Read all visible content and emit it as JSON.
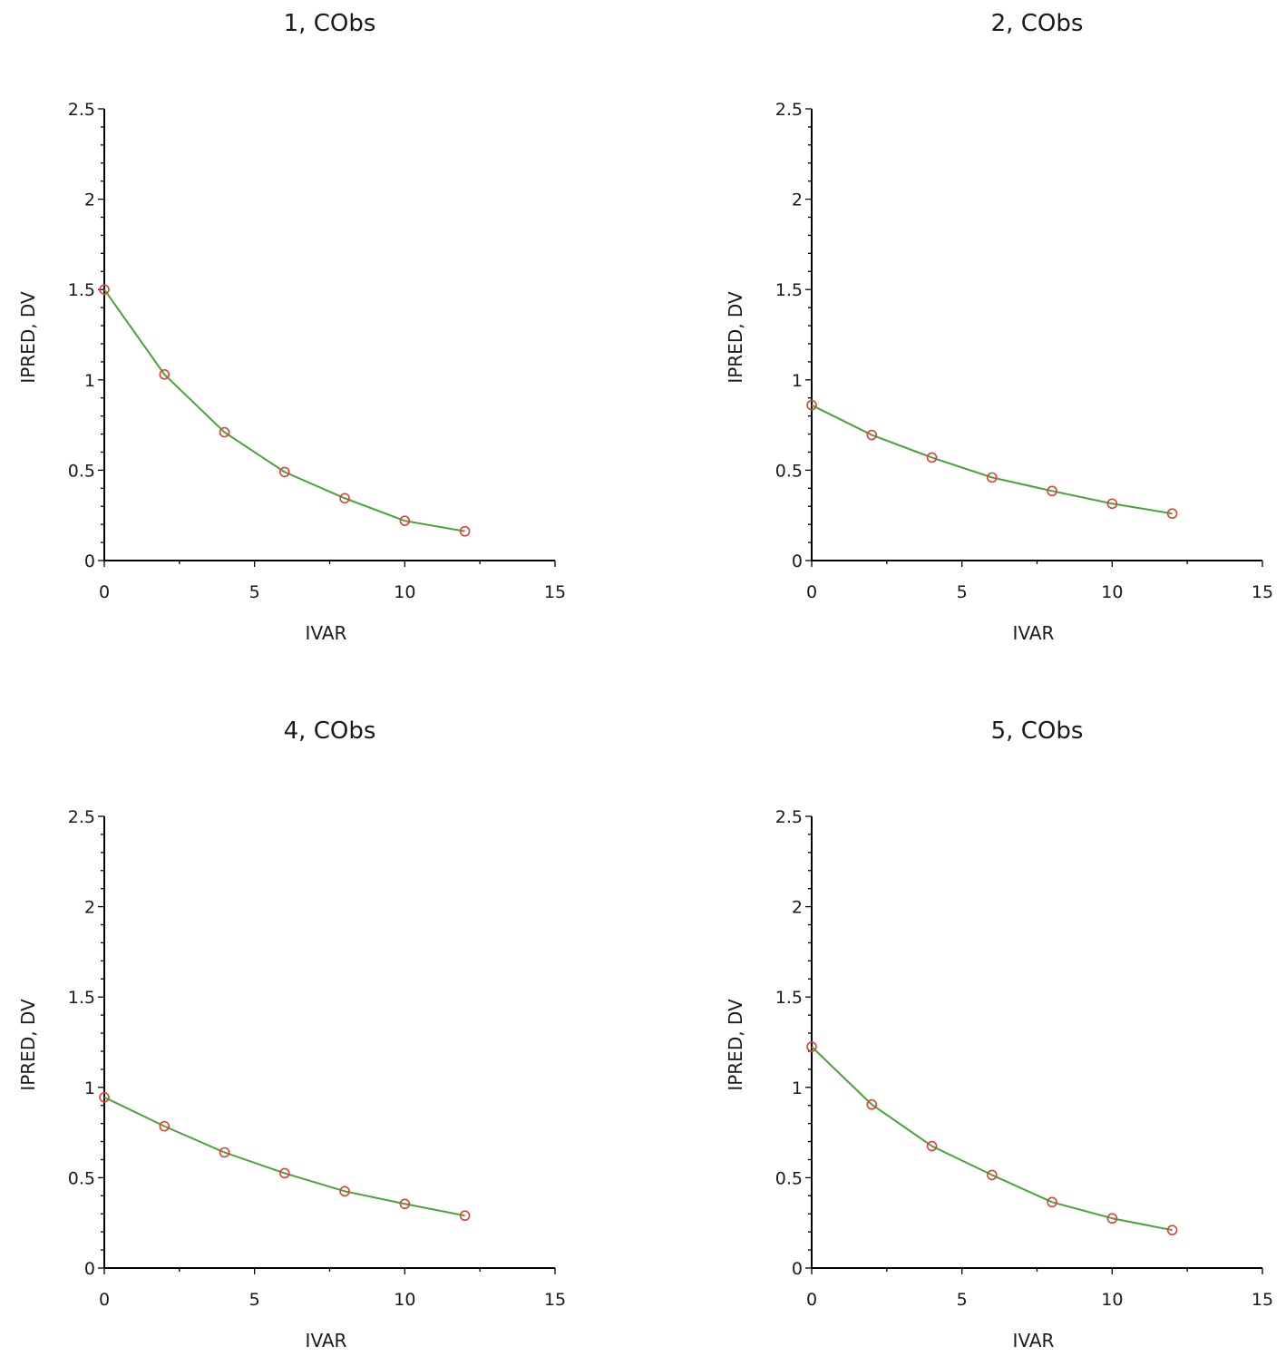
{
  "chart_data": [
    {
      "type": "line",
      "title": "1, CObs",
      "xlabel": "IVAR",
      "ylabel": "IPRED, DV",
      "xlim": [
        0,
        15
      ],
      "ylim": [
        0,
        2.5
      ],
      "xticks": [
        "0",
        "5",
        "10",
        "15"
      ],
      "yticks": [
        "0",
        "0.5",
        "1",
        "1.5",
        "2",
        "2.5"
      ],
      "grid": false,
      "series": [
        {
          "type": "line",
          "color": "#4aa23c",
          "x": [
            0,
            2,
            4,
            6,
            8,
            10,
            12
          ],
          "y": [
            1.5,
            1.03,
            0.71,
            0.49,
            0.345,
            0.22,
            0.162
          ]
        },
        {
          "type": "scatter",
          "marker": "open-circle",
          "color": "#e0403a",
          "x": [
            0,
            2,
            4,
            6,
            8,
            10,
            12
          ],
          "y": [
            1.5,
            1.03,
            0.71,
            0.49,
            0.345,
            0.22,
            0.162
          ]
        }
      ]
    },
    {
      "type": "line",
      "title": "2, CObs",
      "xlabel": "IVAR",
      "ylabel": "IPRED, DV",
      "xlim": [
        0,
        15
      ],
      "ylim": [
        0,
        2.5
      ],
      "xticks": [
        "0",
        "5",
        "10",
        "15"
      ],
      "yticks": [
        "0",
        "0.5",
        "1",
        "1.5",
        "2",
        "2.5"
      ],
      "grid": false,
      "series": [
        {
          "type": "line",
          "color": "#4aa23c",
          "x": [
            0,
            2,
            4,
            6,
            8,
            10,
            12
          ],
          "y": [
            0.86,
            0.695,
            0.57,
            0.46,
            0.385,
            0.315,
            0.26
          ]
        },
        {
          "type": "scatter",
          "marker": "open-circle",
          "color": "#e0403a",
          "x": [
            0,
            2,
            4,
            6,
            8,
            10,
            12
          ],
          "y": [
            0.86,
            0.695,
            0.57,
            0.46,
            0.385,
            0.315,
            0.26
          ]
        }
      ]
    },
    {
      "type": "line",
      "title": "4, CObs",
      "xlabel": "IVAR",
      "ylabel": "IPRED, DV",
      "xlim": [
        0,
        15
      ],
      "ylim": [
        0,
        2.5
      ],
      "xticks": [
        "0",
        "5",
        "10",
        "15"
      ],
      "yticks": [
        "0",
        "0.5",
        "1",
        "1.5",
        "2",
        "2.5"
      ],
      "grid": false,
      "series": [
        {
          "type": "line",
          "color": "#4aa23c",
          "x": [
            0,
            2,
            4,
            6,
            8,
            10,
            12
          ],
          "y": [
            0.945,
            0.785,
            0.64,
            0.525,
            0.425,
            0.355,
            0.29
          ]
        },
        {
          "type": "scatter",
          "marker": "open-circle",
          "color": "#e0403a",
          "x": [
            0,
            2,
            4,
            6,
            8,
            10,
            12
          ],
          "y": [
            0.945,
            0.785,
            0.64,
            0.525,
            0.425,
            0.355,
            0.29
          ]
        }
      ]
    },
    {
      "type": "line",
      "title": "5, CObs",
      "xlabel": "IVAR",
      "ylabel": "IPRED, DV",
      "xlim": [
        0,
        15
      ],
      "ylim": [
        0,
        2.5
      ],
      "xticks": [
        "0",
        "5",
        "10",
        "15"
      ],
      "yticks": [
        "0",
        "0.5",
        "1",
        "1.5",
        "2",
        "2.5"
      ],
      "grid": false,
      "series": [
        {
          "type": "line",
          "color": "#4aa23c",
          "x": [
            0,
            2,
            4,
            6,
            8,
            10,
            12
          ],
          "y": [
            1.225,
            0.905,
            0.675,
            0.515,
            0.365,
            0.275,
            0.21
          ]
        },
        {
          "type": "scatter",
          "marker": "open-circle",
          "color": "#e0403a",
          "x": [
            0,
            2,
            4,
            6,
            8,
            10,
            12
          ],
          "y": [
            1.225,
            0.905,
            0.675,
            0.515,
            0.365,
            0.275,
            0.21
          ]
        }
      ]
    }
  ]
}
